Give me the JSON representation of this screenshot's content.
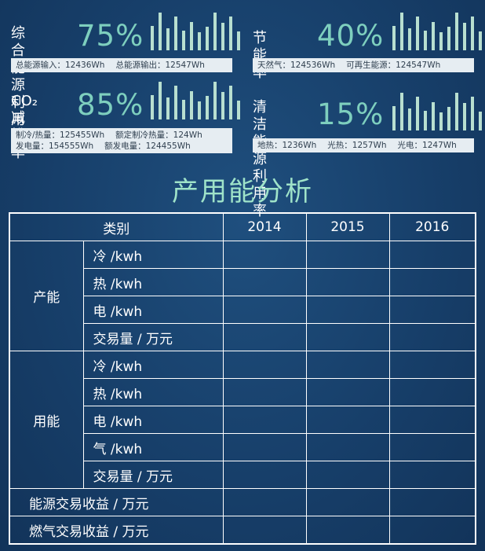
{
  "cards": [
    {
      "title": "综合能源\n利用率",
      "percent": "75%",
      "bars": [
        0.62,
        0.95,
        0.55,
        0.85,
        0.5,
        0.72,
        0.45,
        0.6,
        0.95,
        0.7,
        0.85,
        0.48
      ],
      "stats": [
        [
          "总能源输入：12436Wh",
          "总能源输出：12547Wh"
        ]
      ]
    },
    {
      "title": "节能率",
      "percent": "40%",
      "bars": [
        0.62,
        0.95,
        0.55,
        0.85,
        0.5,
        0.72,
        0.45,
        0.6,
        0.95,
        0.7,
        0.85,
        0.48
      ],
      "stats": [
        [
          "天然气：124536Wh",
          "可再生能源：124547Wh"
        ]
      ]
    },
    {
      "title": "CO₂ 减排\n率",
      "percent": "85%",
      "bars": [
        0.62,
        0.95,
        0.55,
        0.85,
        0.5,
        0.72,
        0.45,
        0.6,
        0.95,
        0.7,
        0.85,
        0.48
      ],
      "stats": [
        [
          "制冷/热量：125455Wh",
          "额定制冷热量：124Wh"
        ],
        [
          "发电量：154555Wh",
          "额发电量：124455Wh"
        ]
      ]
    },
    {
      "title": "清洁能源\n利用率",
      "percent": "15%",
      "bars": [
        0.62,
        0.95,
        0.55,
        0.85,
        0.5,
        0.72,
        0.45,
        0.6,
        0.95,
        0.7,
        0.85,
        0.48
      ],
      "stats": [
        [
          "地热：1236Wh",
          "光热：1257Wh",
          "光电：1247Wh"
        ]
      ]
    }
  ],
  "section_title": "产用能分析",
  "table": {
    "header_category": "类别",
    "years": [
      "2014",
      "2015",
      "2016"
    ],
    "group1": {
      "label": "产能",
      "rows": [
        "冷 /kwh",
        "热 /kwh",
        "电 /kwh",
        "交易量 / 万元"
      ]
    },
    "group2": {
      "label": "用能",
      "rows": [
        "冷 /kwh",
        "热 /kwh",
        "电 /kwh",
        "气 /kwh",
        "交易量 / 万元"
      ]
    },
    "extra_rows": [
      "能源交易收益 / 万元",
      "燃气交易收益 / 万元"
    ]
  },
  "colors": {
    "background": "#1a4673",
    "accent_percent": "#7ecfbe",
    "section_title": "#9fe3c9",
    "bar": "#b8dfd0",
    "strip": "#e6edf2"
  }
}
